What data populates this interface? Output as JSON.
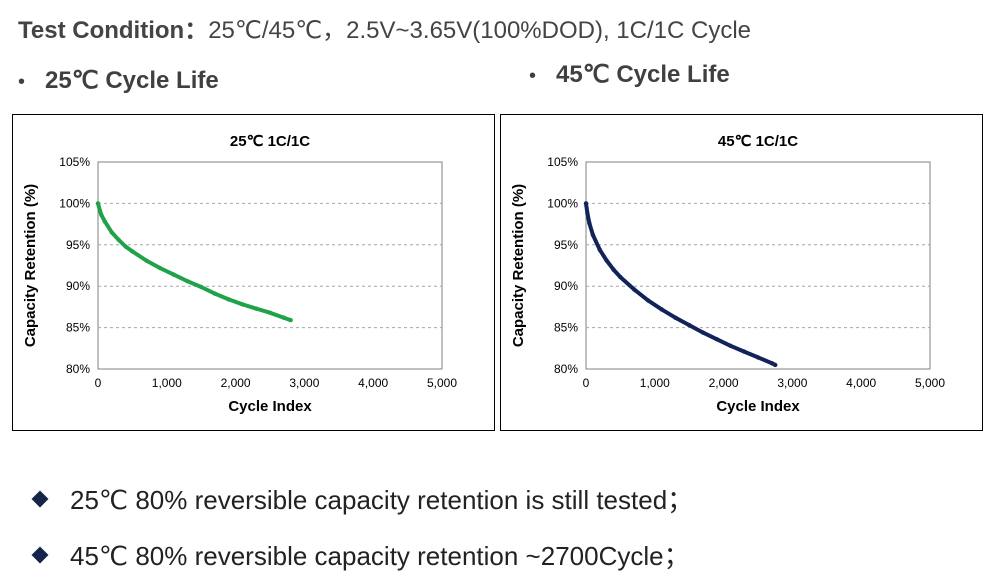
{
  "header": {
    "label": "Test Condition：",
    "value": "25℃/45℃，2.5V~3.65V(100%DOD), 1C/1C Cycle"
  },
  "sections": [
    {
      "bullet": "•",
      "label": "25℃ Cycle Life"
    },
    {
      "bullet": "•",
      "label": "45℃ Cycle Life"
    }
  ],
  "chart_data": [
    {
      "type": "line",
      "title": "25℃ 1C/1C",
      "xlabel": "Cycle Index",
      "ylabel": "Capacity Retention (%)",
      "xlim": [
        0,
        5000
      ],
      "ylim": [
        80,
        105
      ],
      "xticks": [
        "0",
        "1,000",
        "2,000",
        "3,000",
        "4,000",
        "5,000"
      ],
      "yticks": [
        "80%",
        "85%",
        "90%",
        "95%",
        "100%",
        "105%"
      ],
      "grid": "horizontal dashed",
      "color": "#1fa24a",
      "series": [
        {
          "x": [
            0,
            25,
            50,
            100,
            200,
            300,
            400,
            500,
            700,
            900,
            1100,
            1300,
            1500,
            1700,
            1900,
            2100,
            2300,
            2500,
            2700,
            2800
          ],
          "values": [
            100,
            99.2,
            98.6,
            97.8,
            96.5,
            95.6,
            94.8,
            94.2,
            93.1,
            92.2,
            91.4,
            90.6,
            89.9,
            89.1,
            88.4,
            87.8,
            87.3,
            86.8,
            86.2,
            85.9
          ]
        }
      ]
    },
    {
      "type": "line",
      "title": "45℃ 1C/1C",
      "xlabel": "Cycle Index",
      "ylabel": "Capacity Retention (%)",
      "xlim": [
        0,
        5000
      ],
      "ylim": [
        80,
        105
      ],
      "xticks": [
        "0",
        "1,000",
        "2,000",
        "3,000",
        "4,000",
        "5,000"
      ],
      "yticks": [
        "80%",
        "85%",
        "90%",
        "95%",
        "100%",
        "105%"
      ],
      "grid": "horizontal dashed",
      "color": "#12235a",
      "series": [
        {
          "x": [
            0,
            20,
            50,
            100,
            200,
            300,
            400,
            500,
            700,
            900,
            1100,
            1300,
            1500,
            1700,
            1900,
            2100,
            2300,
            2500,
            2700,
            2750
          ],
          "values": [
            100,
            98.8,
            97.6,
            96.2,
            94.4,
            93.1,
            92.0,
            91.1,
            89.6,
            88.3,
            87.2,
            86.2,
            85.3,
            84.4,
            83.6,
            82.8,
            82.1,
            81.4,
            80.7,
            80.5
          ]
        }
      ]
    }
  ],
  "notes": [
    "25℃ 80% reversible capacity retention is still tested；",
    "45℃ 80% reversible capacity retention ~2700Cycle；"
  ]
}
